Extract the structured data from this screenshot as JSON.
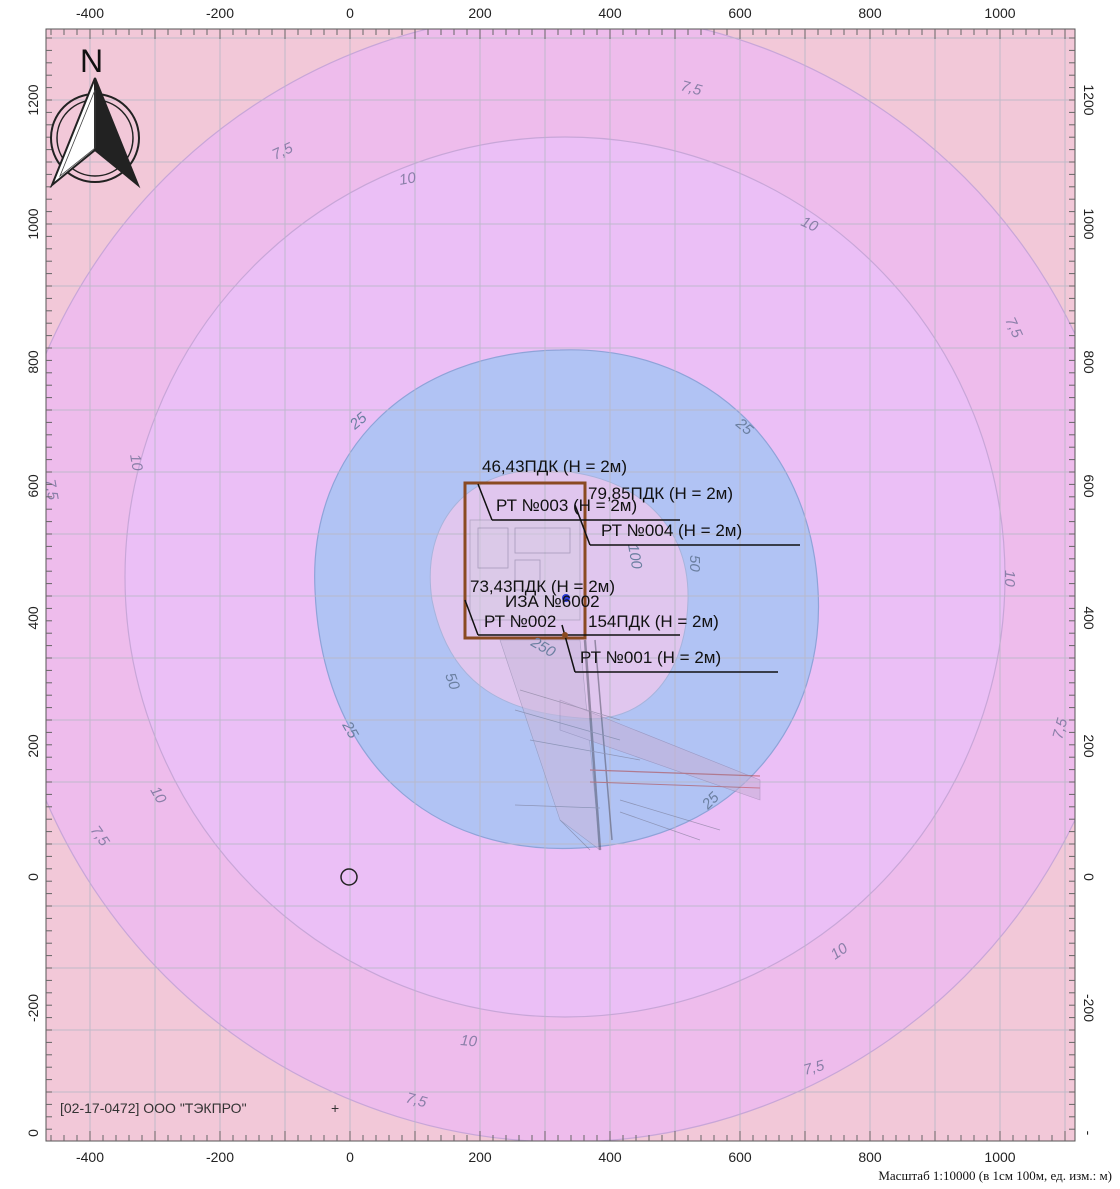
{
  "map": {
    "x_ticks": [
      "-400",
      "-200",
      "0",
      "200",
      "400",
      "600",
      "800",
      "1000"
    ],
    "y_ticks": [
      "1200",
      "1000",
      "800",
      "600",
      "400",
      "200",
      "0",
      "-200"
    ],
    "contour_labels": {
      "v7_5": "7,5",
      "v10": "10",
      "v25": "25",
      "v50": "50",
      "v100": "100",
      "v250": "250"
    },
    "points": {
      "pdk_46": "46,43ПДК (Н = 2м)",
      "rt003": "РТ №003 (Н = 2м)",
      "pdk_79": "79,85ПДК (Н = 2м)",
      "rt004": "РТ №004 (Н = 2м)",
      "pdk_73": "73,43ПДК (Н = 2м)",
      "iza": "ИЗА №6002",
      "rt002": "РТ №002",
      "pdk_154": "154ПДК (Н = 2м)",
      "rt001": "РТ №001 (Н = 2м)"
    },
    "footer": "[02-17-0472] ООО \"ТЭКПРО\"",
    "plus": "+",
    "north": "N",
    "scale": "Масштаб 1:10000 (в 1см 100м, ед. изм.: м)",
    "left_bottom_tick": "0",
    "right_bottom_tick": "-"
  },
  "colors": {
    "outer": "#f2c8d8",
    "mid": "#eebcec",
    "inner": "#ecc0f6",
    "zone25": "#b0c2f4",
    "center": "#e2c6ee",
    "site": "#8a4a22"
  }
}
